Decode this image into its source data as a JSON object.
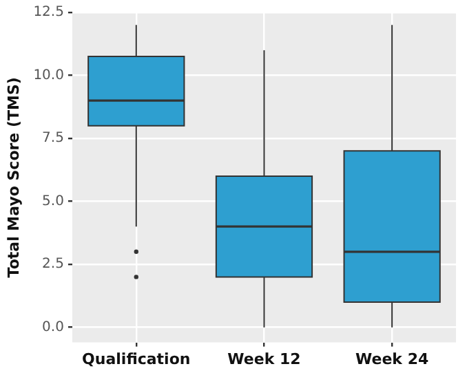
{
  "chart_data": {
    "type": "box",
    "ylabel": "Total Mayo Score (TMS)",
    "categories": [
      "Qualification",
      "Week 12",
      "Week 24"
    ],
    "boxes": [
      {
        "low": 4,
        "q1": 8,
        "median": 9,
        "q3": 10.75,
        "high": 12,
        "outliers": [
          3,
          2
        ]
      },
      {
        "low": 0,
        "q1": 2,
        "median": 4,
        "q3": 6,
        "high": 11
      },
      {
        "low": 0,
        "q1": 1,
        "median": 3,
        "q3": 7,
        "high": 12
      }
    ],
    "color": "#2e9fd0",
    "ylim": [
      -0.6,
      12.5
    ],
    "yticks": [
      {
        "value": 0,
        "label": "0.0"
      },
      {
        "value": 2.5,
        "label": "2.5"
      },
      {
        "value": 5,
        "label": "5.0"
      },
      {
        "value": 7.5,
        "label": "7.5"
      },
      {
        "value": 10,
        "label": "10.0"
      },
      {
        "value": 12.5,
        "label": "12.5"
      }
    ],
    "grid": true
  }
}
